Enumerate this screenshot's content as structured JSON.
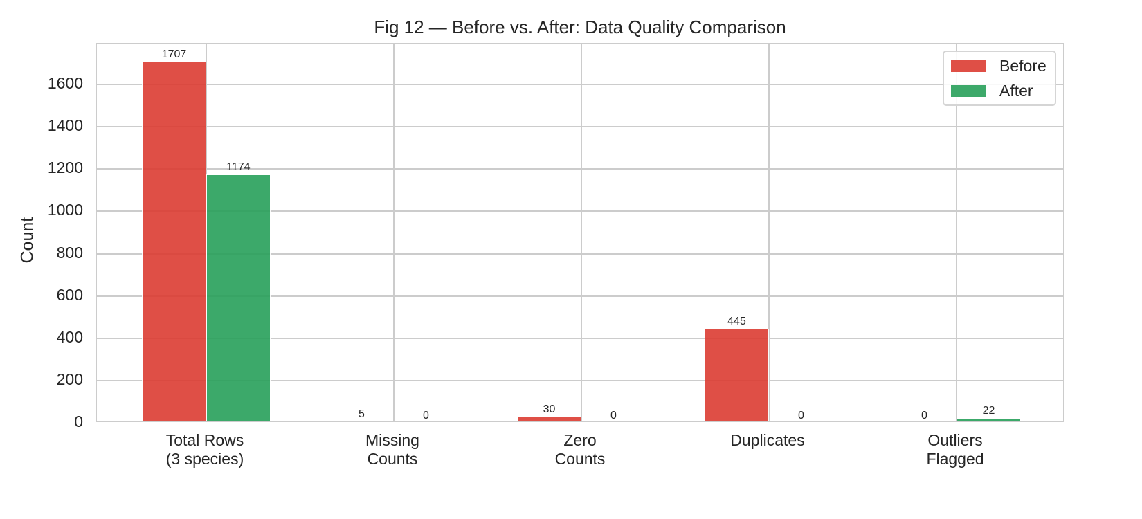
{
  "chart_data": {
    "type": "bar",
    "title": "Fig 12 — Before vs. After: Data Quality Comparison",
    "xlabel": "",
    "ylabel": "Count",
    "ylim": [
      0,
      1790
    ],
    "yticks": [
      0,
      200,
      400,
      600,
      800,
      1000,
      1200,
      1400,
      1600
    ],
    "grid": true,
    "legend_position": "upper right",
    "categories": [
      "Total Rows\n(3 species)",
      "Missing\nCounts",
      "Zero\nCounts",
      "Duplicates",
      "Outliers\nFlagged"
    ],
    "series": [
      {
        "name": "Before",
        "color": "#dc3c32",
        "values": [
          1707,
          5,
          30,
          445,
          0
        ]
      },
      {
        "name": "After",
        "color": "#28a05a",
        "values": [
          1174,
          0,
          0,
          0,
          22
        ]
      }
    ]
  }
}
